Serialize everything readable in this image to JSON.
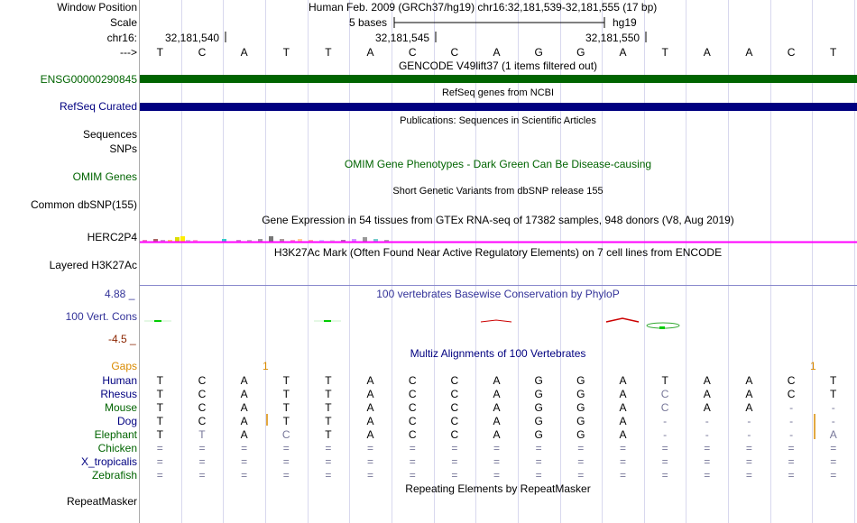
{
  "header": {
    "labels": {
      "window_position": "Window Position",
      "scale": "Scale",
      "chr": "chr16:",
      "arrows": "--->"
    },
    "window_position_text": "Human Feb. 2009 (GRCh37/hg19)   chr16:32,181,539-32,181,555 (17 bp)",
    "scale_left": "5 bases",
    "scale_right": "hg19",
    "positions": [
      "32,181,540",
      "32,181,545",
      "32,181,550"
    ],
    "sequence": [
      "T",
      "C",
      "A",
      "T",
      "T",
      "A",
      "C",
      "C",
      "A",
      "G",
      "G",
      "A",
      "T",
      "A",
      "A",
      "C",
      "T"
    ]
  },
  "tracks": {
    "gencode": {
      "label": "ENSG00000290845",
      "title": "GENCODE V49lift37 (1 items filtered out)",
      "color": "#006400"
    },
    "refseq": {
      "label": "RefSeq Curated",
      "title": "RefSeq genes from NCBI",
      "color": "#000080"
    },
    "publications": {
      "title": "Publications: Sequences in Scientific Articles"
    },
    "sequences": {
      "label": "Sequences"
    },
    "snps": {
      "label": "SNPs"
    },
    "omim": {
      "label": "OMIM Genes",
      "title": "OMIM Gene Phenotypes - Dark Green Can Be Disease-causing",
      "color": "#006400"
    },
    "dbsnp": {
      "label": "Common dbSNP(155)",
      "title": "Short Genetic Variants from dbSNP release 155"
    },
    "gtex": {
      "label": "HERC2P4",
      "title": "Gene Expression in 54 tissues from GTEx RNA-seq of 17382 samples, 948 donors (V8, Aug 2019)",
      "color": "#ff00ff"
    },
    "h3k27ac": {
      "label": "Layered H3K27Ac",
      "title": "H3K27Ac Mark (Often Found Near Active Regulatory Elements) on 7 cell lines from ENCODE"
    },
    "phylop": {
      "label": "100 Vert. Cons",
      "title": "100 vertebrates Basewise Conservation by PhyloP",
      "max": "4.88 _",
      "min": "-4.5 _",
      "color": "#333399",
      "min_color": "#8b2500"
    },
    "multiz": {
      "title": "Multiz Alignments of 100 Vertebrates",
      "color": "#000080",
      "gaps_label": "Gaps",
      "gaps_color": "#d98a00",
      "gaps_left": "1",
      "gaps_right": "1",
      "species": [
        {
          "name": "Human",
          "color": "#000080",
          "seq": [
            "T",
            "C",
            "A",
            "T",
            "T",
            "A",
            "C",
            "C",
            "A",
            "G",
            "G",
            "A",
            "T",
            "A",
            "A",
            "C",
            "T"
          ]
        },
        {
          "name": "Rhesus",
          "color": "#000080",
          "seq": [
            "T",
            "C",
            "A",
            "T",
            "T",
            "A",
            "C",
            "C",
            "A",
            "G",
            "G",
            "A",
            "C",
            "A",
            "A",
            "C",
            "T"
          ]
        },
        {
          "name": "Mouse",
          "color": "#006400",
          "seq": [
            "T",
            "C",
            "A",
            "T",
            "T",
            "A",
            "C",
            "C",
            "A",
            "G",
            "G",
            "A",
            "C",
            "A",
            "A",
            "-",
            "-"
          ]
        },
        {
          "name": "Dog",
          "color": "#000080",
          "seq": [
            "T",
            "C",
            "A",
            "T",
            "T",
            "A",
            "C",
            "C",
            "A",
            "G",
            "G",
            "A",
            "-",
            "-",
            "-",
            "-",
            "-"
          ]
        },
        {
          "name": "Elephant",
          "color": "#006400",
          "seq": [
            "T",
            "T",
            "A",
            "C",
            "T",
            "A",
            "C",
            "C",
            "A",
            "G",
            "G",
            "A",
            "-",
            "-",
            "-",
            "-",
            "A"
          ]
        },
        {
          "name": "Chicken",
          "color": "#006400",
          "seq": [
            "=",
            "=",
            "=",
            "=",
            "=",
            "=",
            "=",
            "=",
            "=",
            "=",
            "=",
            "=",
            "=",
            "=",
            "=",
            "=",
            "="
          ]
        },
        {
          "name": "X_tropicalis",
          "color": "#000080",
          "seq": [
            "=",
            "=",
            "=",
            "=",
            "=",
            "=",
            "=",
            "=",
            "=",
            "=",
            "=",
            "=",
            "=",
            "=",
            "=",
            "=",
            "="
          ]
        },
        {
          "name": "Zebrafish",
          "color": "#006400",
          "seq": [
            "=",
            "=",
            "=",
            "=",
            "=",
            "=",
            "=",
            "=",
            "=",
            "=",
            "=",
            "=",
            "=",
            "=",
            "=",
            "=",
            "="
          ]
        }
      ]
    },
    "repeatmasker": {
      "label": "RepeatMasker",
      "title": "Repeating Elements by RepeatMasker"
    }
  }
}
